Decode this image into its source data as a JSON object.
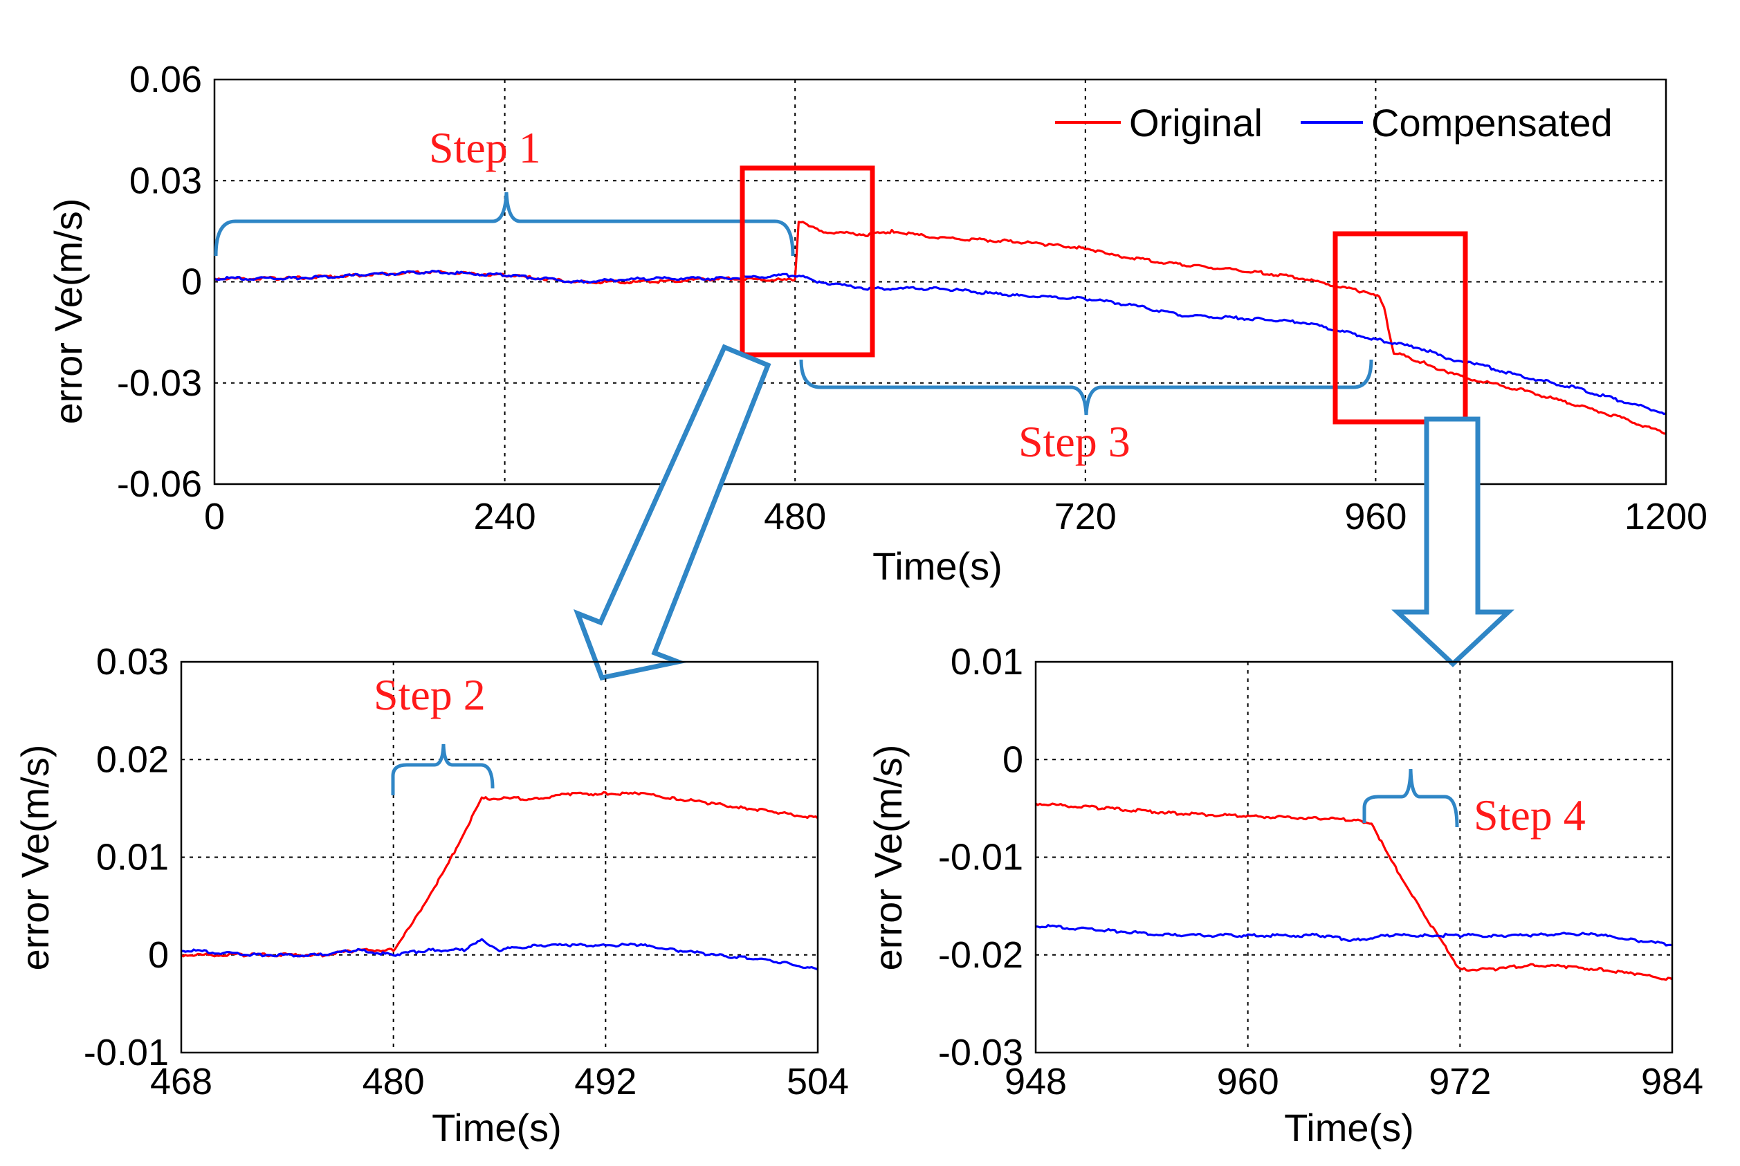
{
  "legend": {
    "original": "Original",
    "compensated": "Compensated"
  },
  "annotations": {
    "step1": "Step 1",
    "step2": "Step 2",
    "step3": "Step 3",
    "step4": "Step 4"
  },
  "colors": {
    "original": "#ff0000",
    "compensated": "#0000ff",
    "bracket": "#2f86c6",
    "highlight": "#ff0000"
  },
  "chart_data": [
    {
      "id": "main",
      "type": "line",
      "xlabel": "Time(s)",
      "ylabel": "error Ve(m/s)",
      "xlim": [
        0,
        1200
      ],
      "ylim": [
        -0.06,
        0.06
      ],
      "xticks": [
        0,
        240,
        480,
        720,
        960,
        1200
      ],
      "yticks": [
        0.06,
        0.03,
        0,
        -0.03,
        -0.06
      ],
      "xtick_labels": [
        "0",
        "240",
        "480",
        "720",
        "960",
        "1200"
      ],
      "ytick_labels": [
        "0.06",
        "0.03",
        "0",
        "-0.03",
        "-0.06"
      ],
      "grid": true,
      "legend_position": "top-right",
      "series": [
        {
          "name": "Original",
          "x": [
            0,
            60,
            120,
            180,
            240,
            300,
            360,
            420,
            478,
            480,
            483,
            500,
            540,
            560,
            600,
            660,
            690,
            720,
            740,
            800,
            860,
            900,
            950,
            963,
            967,
            975,
            1000,
            1020,
            1040,
            1080,
            1120,
            1160,
            1200
          ],
          "y": [
            0.001,
            0.001,
            0.002,
            0.003,
            0.002,
            0.0,
            0.0,
            0.001,
            0.0005,
            0.0005,
            0.018,
            0.015,
            0.014,
            0.015,
            0.013,
            0.012,
            0.011,
            0.01,
            0.008,
            0.005,
            0.003,
            0.001,
            -0.003,
            -0.004,
            -0.008,
            -0.021,
            -0.024,
            -0.027,
            -0.029,
            -0.032,
            -0.036,
            -0.04,
            -0.045
          ]
        },
        {
          "name": "Compensated",
          "x": [
            0,
            60,
            120,
            180,
            240,
            300,
            360,
            420,
            480,
            500,
            540,
            600,
            660,
            720,
            760,
            800,
            860,
            900,
            960,
            1000,
            1020,
            1040,
            1080,
            1120,
            1160,
            1200
          ],
          "y": [
            0.001,
            0.001,
            0.002,
            0.003,
            0.002,
            0.0,
            0.001,
            0.001,
            0.002,
            0.0,
            -0.002,
            -0.002,
            -0.004,
            -0.005,
            -0.007,
            -0.01,
            -0.011,
            -0.012,
            -0.017,
            -0.02,
            -0.023,
            -0.024,
            -0.028,
            -0.031,
            -0.035,
            -0.039
          ]
        }
      ]
    },
    {
      "id": "zoom1",
      "type": "line",
      "xlabel": "Time(s)",
      "ylabel": "error Ve(m/s)",
      "xlim": [
        468,
        504
      ],
      "ylim": [
        -0.01,
        0.03
      ],
      "xticks": [
        468,
        480,
        492,
        504
      ],
      "yticks": [
        0.03,
        0.02,
        0.01,
        0,
        -0.01
      ],
      "xtick_labels": [
        "468",
        "480",
        "492",
        "504"
      ],
      "ytick_labels": [
        "0.03",
        "0.02",
        "0.01",
        "0",
        "-0.01"
      ],
      "grid": true,
      "series": [
        {
          "name": "Original",
          "x": [
            468,
            472,
            476,
            478,
            480,
            481,
            482,
            483,
            484,
            485,
            486,
            488,
            490,
            492,
            494,
            496,
            498,
            500,
            502,
            504
          ],
          "y": [
            0.0,
            0.0,
            0.0,
            0.0005,
            0.0005,
            0.003,
            0.006,
            0.009,
            0.0125,
            0.016,
            0.016,
            0.016,
            0.0165,
            0.0165,
            0.0165,
            0.016,
            0.0155,
            0.015,
            0.0145,
            0.014
          ]
        },
        {
          "name": "Compensated",
          "x": [
            468,
            472,
            476,
            478,
            480,
            482,
            484,
            485,
            486,
            488,
            490,
            492,
            494,
            496,
            498,
            500,
            502,
            504
          ],
          "y": [
            0.0005,
            0.0,
            0.0,
            0.0005,
            0.0,
            0.0005,
            0.0005,
            0.0015,
            0.0005,
            0.001,
            0.001,
            0.001,
            0.001,
            0.0005,
            0.0,
            -0.0003,
            -0.0008,
            -0.0015
          ]
        }
      ]
    },
    {
      "id": "zoom2",
      "type": "line",
      "xlabel": "Time(s)",
      "ylabel": "error Ve(m/s)",
      "xlim": [
        948,
        984
      ],
      "ylim": [
        -0.03,
        0.01
      ],
      "xticks": [
        948,
        960,
        972,
        984
      ],
      "yticks": [
        0.01,
        0,
        -0.01,
        -0.02,
        -0.03
      ],
      "xtick_labels": [
        "948",
        "960",
        "972",
        "984"
      ],
      "ytick_labels": [
        "0.01",
        "0",
        "-0.01",
        "-0.02",
        "-0.03"
      ],
      "grid": true,
      "series": [
        {
          "name": "Original",
          "x": [
            948,
            952,
            956,
            960,
            964,
            966,
            967,
            968,
            970,
            972,
            974,
            976,
            978,
            980,
            982,
            984
          ],
          "y": [
            -0.0045,
            -0.005,
            -0.0055,
            -0.0058,
            -0.006,
            -0.0062,
            -0.0065,
            -0.01,
            -0.016,
            -0.0215,
            -0.0215,
            -0.021,
            -0.0212,
            -0.0215,
            -0.022,
            -0.0225
          ]
        },
        {
          "name": "Compensated",
          "x": [
            948,
            952,
            956,
            960,
            964,
            966,
            968,
            970,
            972,
            974,
            976,
            978,
            980,
            982,
            984
          ],
          "y": [
            -0.017,
            -0.0175,
            -0.018,
            -0.018,
            -0.018,
            -0.0185,
            -0.018,
            -0.018,
            -0.018,
            -0.018,
            -0.018,
            -0.0178,
            -0.018,
            -0.0185,
            -0.019
          ]
        }
      ]
    }
  ]
}
